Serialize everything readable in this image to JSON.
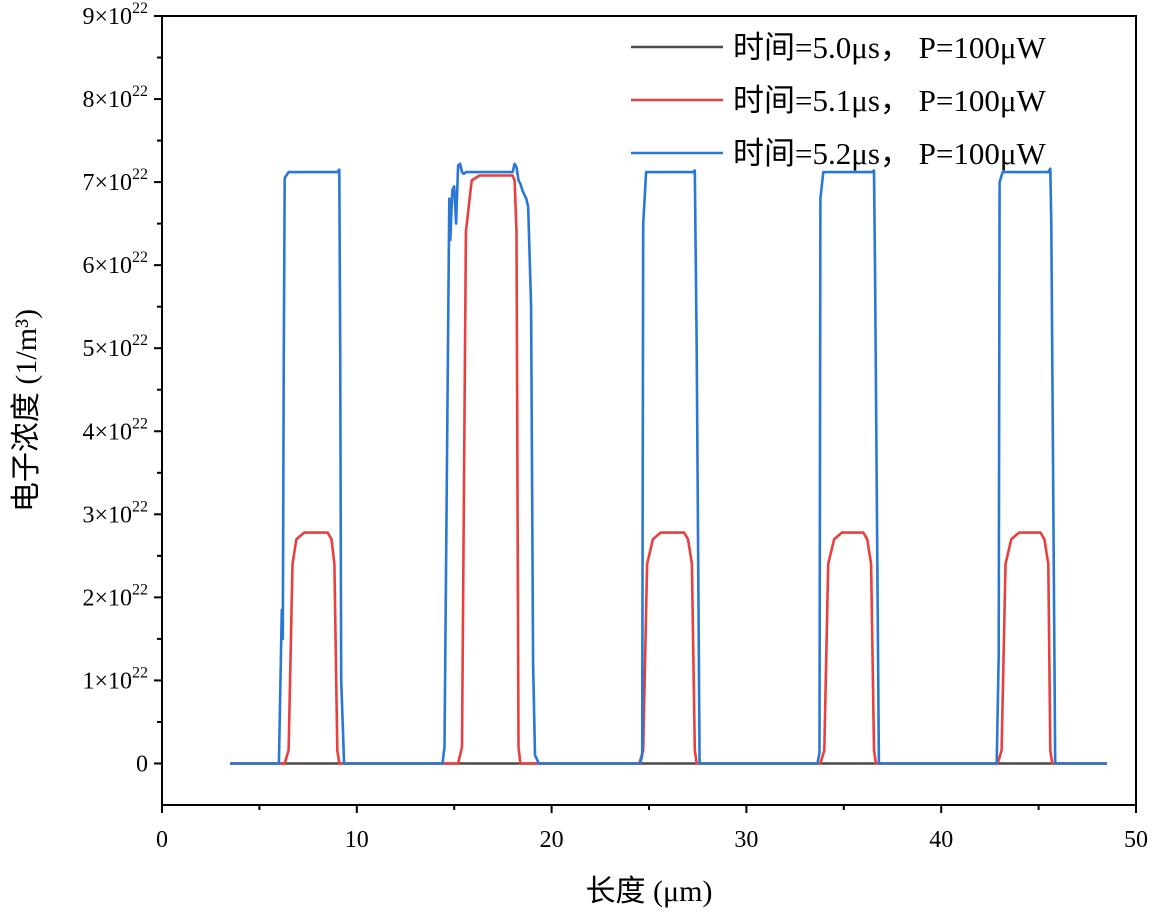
{
  "chart_data": {
    "type": "line",
    "title": "",
    "xlabel": "长度 (μm)",
    "ylabel": "电子浓度 (1/m³)",
    "xlim": [
      0,
      50
    ],
    "ylim": [
      -5e+21,
      9e+22
    ],
    "xticks": [
      0,
      10,
      20,
      30,
      40,
      50
    ],
    "xtick_labels": [
      "0",
      "10",
      "20",
      "30",
      "40",
      "50"
    ],
    "yticks": [
      0,
      1e+22,
      2e+22,
      3e+22,
      4e+22,
      5e+22,
      6e+22,
      7e+22,
      8e+22,
      9e+22
    ],
    "ytick_labels": [
      {
        "mant": "0",
        "exp": ""
      },
      {
        "mant": "1×10",
        "exp": "22"
      },
      {
        "mant": "2×10",
        "exp": "22"
      },
      {
        "mant": "3×10",
        "exp": "22"
      },
      {
        "mant": "4×10",
        "exp": "22"
      },
      {
        "mant": "5×10",
        "exp": "22"
      },
      {
        "mant": "6×10",
        "exp": "22"
      },
      {
        "mant": "7×10",
        "exp": "22"
      },
      {
        "mant": "8×10",
        "exp": "22"
      },
      {
        "mant": "9×10",
        "exp": "22"
      }
    ],
    "legend_position": "top-right",
    "series": [
      {
        "name": "时间=5.0μs， P=100μW",
        "color": "#4a4a4a",
        "x": [
          3.5,
          48.5
        ],
        "y": [
          0,
          0
        ]
      },
      {
        "name": "时间=5.1μs， P=100μW",
        "color": "#e8403f",
        "x": [
          3.5,
          6.3,
          6.5,
          6.7,
          6.9,
          7.3,
          8.5,
          8.7,
          8.85,
          9.0,
          9.1,
          15.2,
          15.4,
          15.6,
          15.9,
          16.3,
          18.0,
          18.1,
          18.2,
          18.3,
          18.4,
          24.5,
          24.7,
          24.9,
          25.2,
          25.6,
          26.8,
          27.0,
          27.2,
          27.35,
          27.45,
          33.8,
          34.0,
          34.2,
          34.5,
          34.9,
          36.0,
          36.2,
          36.4,
          36.55,
          36.65,
          42.9,
          43.1,
          43.3,
          43.6,
          44.0,
          45.1,
          45.3,
          45.5,
          45.6,
          45.7,
          48.5
        ],
        "y": [
          0,
          0,
          1.6e+21,
          2.4e+22,
          2.7e+22,
          2.78e+22,
          2.78e+22,
          2.7e+22,
          2.4e+22,
          1.6e+21,
          0,
          0,
          2e+21,
          6.4e+22,
          7.02e+22,
          7.08e+22,
          7.08e+22,
          7.02e+22,
          6.4e+22,
          2e+21,
          0,
          0,
          1.6e+21,
          2.4e+22,
          2.7e+22,
          2.78e+22,
          2.78e+22,
          2.7e+22,
          2.4e+22,
          1.6e+21,
          0,
          0,
          1.6e+21,
          2.4e+22,
          2.7e+22,
          2.78e+22,
          2.78e+22,
          2.7e+22,
          2.4e+22,
          1.6e+21,
          0,
          0,
          1.6e+21,
          2.4e+22,
          2.7e+22,
          2.78e+22,
          2.78e+22,
          2.7e+22,
          2.4e+22,
          1.6e+21,
          0,
          0
        ]
      },
      {
        "name": "时间=5.2μs， P=100μW",
        "color": "#2a78d4",
        "x": [
          3.5,
          6.0,
          6.15,
          6.2,
          6.25,
          6.3,
          6.5,
          9.0,
          9.1,
          9.15,
          9.2,
          9.35,
          14.4,
          14.5,
          14.7,
          14.75,
          14.8,
          14.9,
          15.0,
          15.1,
          15.2,
          15.3,
          15.4,
          15.5,
          15.6,
          18.0,
          18.1,
          18.2,
          18.3,
          18.4,
          18.5,
          18.6,
          18.7,
          18.8,
          18.95,
          19.05,
          19.15,
          19.35,
          24.55,
          24.65,
          24.7,
          24.85,
          27.25,
          27.35,
          27.45,
          27.6,
          33.65,
          33.75,
          33.8,
          33.95,
          36.45,
          36.55,
          36.6,
          36.8,
          42.85,
          42.95,
          43.0,
          43.15,
          45.5,
          45.6,
          45.65,
          45.85,
          48.5
        ],
        "y": [
          0,
          0,
          1.85e+22,
          1.5e+22,
          5e+22,
          7.05e+22,
          7.12e+22,
          7.12e+22,
          7.15e+22,
          5e+22,
          1e+22,
          0,
          0,
          2e+21,
          5.6e+22,
          6.8e+22,
          6.3e+22,
          6.9e+22,
          6.95e+22,
          6.5e+22,
          7.2e+22,
          7.22e+22,
          7.12e+22,
          7.1e+22,
          7.12e+22,
          7.12e+22,
          7.22e+22,
          7.18e+22,
          7.02e+22,
          6.98e+22,
          6.9e+22,
          6.85e+22,
          6.8e+22,
          6.7e+22,
          5.5e+22,
          1.2e+22,
          1e+21,
          0,
          0,
          1e+21,
          6.5e+22,
          7.12e+22,
          7.12e+22,
          7.14e+22,
          5e+22,
          0,
          0,
          1.3e+21,
          6.8e+22,
          7.12e+22,
          7.12e+22,
          7.14e+22,
          6e+22,
          0,
          0,
          1.3e+22,
          7e+22,
          7.12e+22,
          7.12e+22,
          7.16e+22,
          6.5e+22,
          0,
          0
        ]
      }
    ]
  }
}
